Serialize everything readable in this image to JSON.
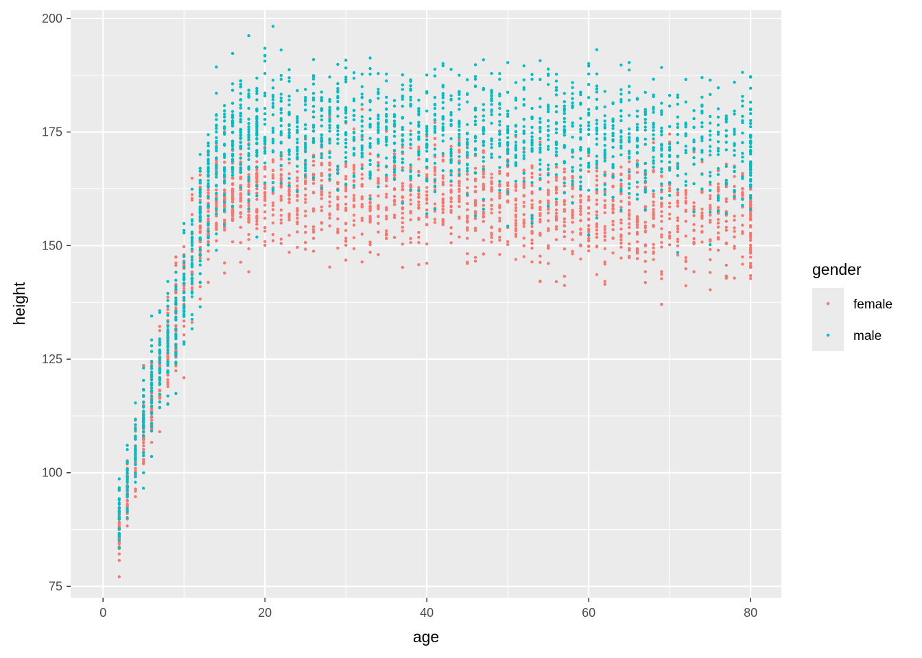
{
  "chart_data": {
    "type": "scatter",
    "title": "",
    "xlabel": "age",
    "ylabel": "height",
    "xlim": [
      -4,
      83.8
    ],
    "ylim": [
      72.5,
      201.8
    ],
    "x_ticks": [
      0,
      20,
      40,
      60,
      80
    ],
    "y_ticks": [
      75,
      100,
      125,
      150,
      175,
      200
    ],
    "grid": true,
    "background": "#EBEBEB",
    "legend": {
      "title": "gender",
      "placement": "right",
      "entries": [
        {
          "label": "female",
          "color": "#F8766D"
        },
        {
          "label": "male",
          "color": "#00BFC4"
        }
      ]
    },
    "series": [
      {
        "name": "female",
        "color": "#F8766D",
        "profile": [
          {
            "age": 2,
            "mean": 87,
            "sd": 4
          },
          {
            "age": 3,
            "mean": 96,
            "sd": 4
          },
          {
            "age": 4,
            "mean": 103,
            "sd": 4.5
          },
          {
            "age": 5,
            "mean": 110,
            "sd": 5
          },
          {
            "age": 6,
            "mean": 116,
            "sd": 5
          },
          {
            "age": 7,
            "mean": 122,
            "sd": 5.5
          },
          {
            "age": 8,
            "mean": 128,
            "sd": 6
          },
          {
            "age": 9,
            "mean": 134,
            "sd": 6.5
          },
          {
            "age": 10,
            "mean": 140,
            "sd": 6.5
          },
          {
            "age": 11,
            "mean": 147,
            "sd": 6.5
          },
          {
            "age": 12,
            "mean": 153,
            "sd": 6
          },
          {
            "age": 13,
            "mean": 157,
            "sd": 5.5
          },
          {
            "age": 14,
            "mean": 159,
            "sd": 5.5
          },
          {
            "age": 16,
            "mean": 161,
            "sd": 5.5
          },
          {
            "age": 20,
            "mean": 162,
            "sd": 6
          },
          {
            "age": 40,
            "mean": 161,
            "sd": 6.5
          },
          {
            "age": 60,
            "mean": 158,
            "sd": 6.5
          },
          {
            "age": 80,
            "mean": 155,
            "sd": 6.5
          }
        ]
      },
      {
        "name": "male",
        "color": "#00BFC4",
        "profile": [
          {
            "age": 2,
            "mean": 90,
            "sd": 4
          },
          {
            "age": 3,
            "mean": 98,
            "sd": 4
          },
          {
            "age": 4,
            "mean": 105,
            "sd": 4.5
          },
          {
            "age": 5,
            "mean": 112,
            "sd": 5
          },
          {
            "age": 6,
            "mean": 118,
            "sd": 5
          },
          {
            "age": 7,
            "mean": 124,
            "sd": 5.5
          },
          {
            "age": 8,
            "mean": 130,
            "sd": 6
          },
          {
            "age": 9,
            "mean": 136,
            "sd": 6.5
          },
          {
            "age": 10,
            "mean": 141,
            "sd": 7
          },
          {
            "age": 11,
            "mean": 148,
            "sd": 8
          },
          {
            "age": 12,
            "mean": 155,
            "sd": 8
          },
          {
            "age": 13,
            "mean": 162,
            "sd": 8
          },
          {
            "age": 14,
            "mean": 168,
            "sd": 7.5
          },
          {
            "age": 16,
            "mean": 174,
            "sd": 7
          },
          {
            "age": 20,
            "mean": 176,
            "sd": 7
          },
          {
            "age": 40,
            "mean": 176,
            "sd": 7
          },
          {
            "age": 60,
            "mean": 174,
            "sd": 7
          },
          {
            "age": 80,
            "mean": 171,
            "sd": 7
          }
        ]
      }
    ]
  }
}
